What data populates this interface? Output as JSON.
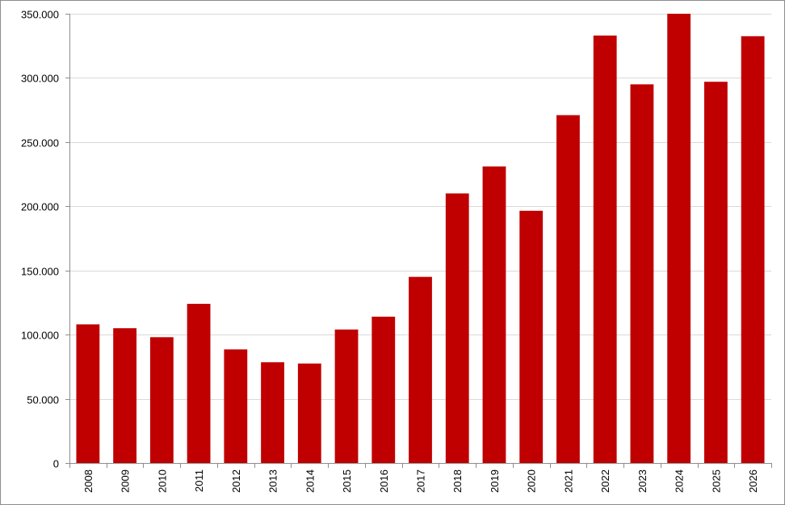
{
  "chart_data": {
    "type": "bar",
    "title": "",
    "xlabel": "",
    "ylabel": "",
    "categories": [
      "2008",
      "2009",
      "2010",
      "2011",
      "2012",
      "2013",
      "2014",
      "2015",
      "2016",
      "2017",
      "2018",
      "2019",
      "2020",
      "2021",
      "2022",
      "2023",
      "2024",
      "2025",
      "2026"
    ],
    "values": [
      108000,
      105000,
      98000,
      124000,
      88500,
      78500,
      77500,
      104000,
      114000,
      145000,
      210000,
      231000,
      196500,
      271000,
      333000,
      295000,
      350000,
      297000,
      332500
    ],
    "ylim": [
      0,
      350000
    ],
    "yticks": [
      0,
      50000,
      100000,
      150000,
      200000,
      250000,
      300000,
      350000
    ],
    "ytick_labels": [
      "0",
      "50.000",
      "100.000",
      "150.000",
      "200.000",
      "250.000",
      "300.000",
      "350.000"
    ],
    "bar_color": "#C00000",
    "gridline_color": "#d9d9d9",
    "axis_color": "#8c8c8c",
    "grid": true,
    "legend": "none",
    "xtick_rotation": "vertical"
  }
}
